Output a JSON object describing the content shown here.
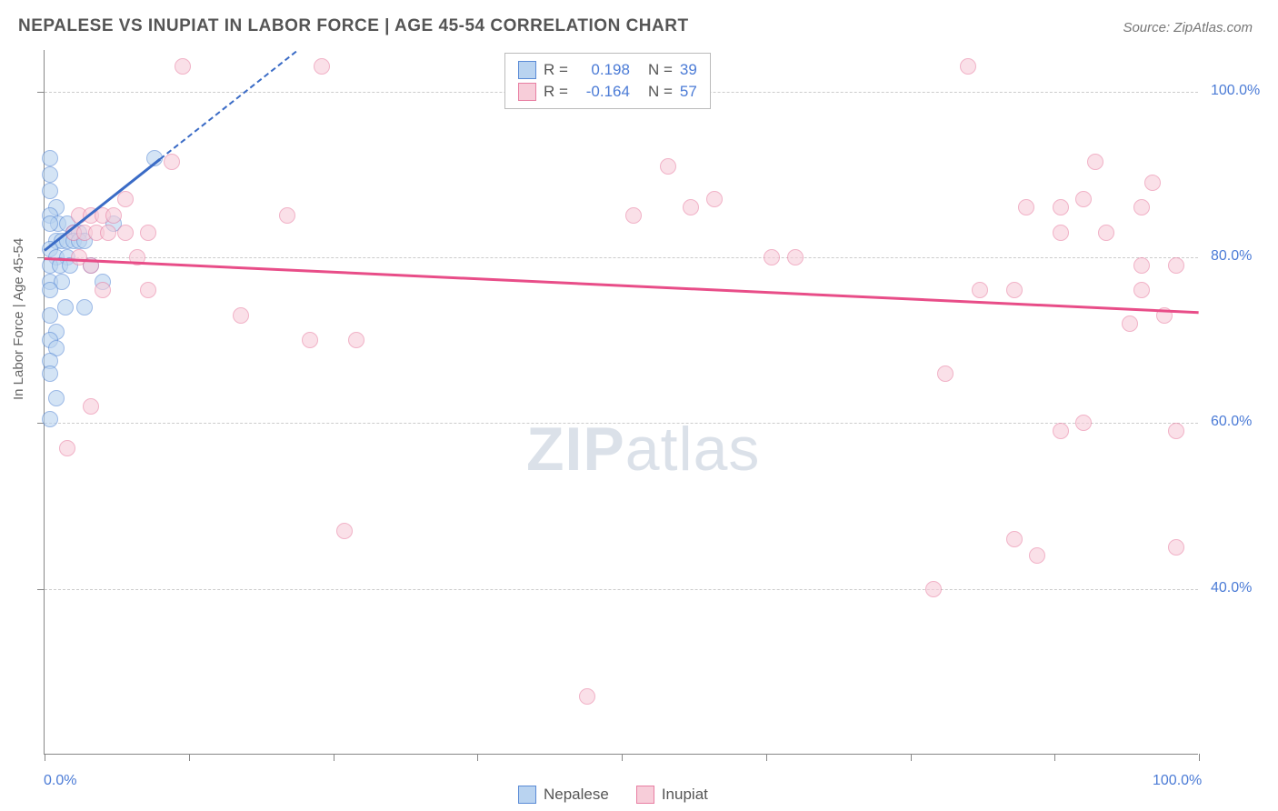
{
  "title": "NEPALESE VS INUPIAT IN LABOR FORCE | AGE 45-54 CORRELATION CHART",
  "source": "Source: ZipAtlas.com",
  "watermark_zip": "ZIP",
  "watermark_atlas": "atlas",
  "ylabel": "In Labor Force | Age 45-54",
  "chart": {
    "type": "scatter",
    "xlim": [
      0,
      100
    ],
    "ylim": [
      20,
      105
    ],
    "y_ticks": [
      40,
      60,
      80,
      100
    ],
    "y_tick_labels": [
      "40.0%",
      "60.0%",
      "80.0%",
      "100.0%"
    ],
    "x_tick_positions": [
      0,
      12.5,
      25,
      37.5,
      50,
      62.5,
      75,
      87.5,
      100
    ],
    "x_labels_shown": {
      "0": "0.0%",
      "100": "100.0%"
    },
    "grid_color": "#cccccc",
    "background_color": "#ffffff",
    "axis_color": "#888888",
    "tick_label_color": "#4b7bd6",
    "point_radius": 9,
    "series": [
      {
        "name": "Nepalese",
        "color_fill": "#b9d3f0",
        "color_stroke": "#5a8bd6",
        "opacity": 0.6,
        "R": "0.198",
        "N": "39",
        "trend": {
          "x1": 0,
          "y1": 81,
          "x2": 10,
          "y2": 92,
          "color": "#3a6bc6",
          "dash_extend_to_x": 30
        },
        "points": [
          [
            0.5,
            92
          ],
          [
            0.5,
            90
          ],
          [
            0.5,
            88
          ],
          [
            1,
            86
          ],
          [
            0.5,
            85
          ],
          [
            1.2,
            84
          ],
          [
            0.5,
            84
          ],
          [
            2,
            84
          ],
          [
            2.5,
            83
          ],
          [
            3,
            83
          ],
          [
            1,
            82
          ],
          [
            1.5,
            82
          ],
          [
            2,
            82
          ],
          [
            2.5,
            82
          ],
          [
            3,
            82
          ],
          [
            3.5,
            82
          ],
          [
            0.5,
            81
          ],
          [
            1,
            80
          ],
          [
            2,
            80
          ],
          [
            0.5,
            79
          ],
          [
            1.3,
            79
          ],
          [
            2.2,
            79
          ],
          [
            4,
            79
          ],
          [
            0.5,
            77
          ],
          [
            1.5,
            77
          ],
          [
            5,
            77
          ],
          [
            0.5,
            76
          ],
          [
            1.8,
            74
          ],
          [
            3.5,
            74
          ],
          [
            0.5,
            73
          ],
          [
            1,
            71
          ],
          [
            0.5,
            70
          ],
          [
            1,
            69
          ],
          [
            0.5,
            67.5
          ],
          [
            0.5,
            66
          ],
          [
            1,
            63
          ],
          [
            9.5,
            92
          ],
          [
            0.5,
            60.5
          ],
          [
            6,
            84
          ]
        ]
      },
      {
        "name": "Inupiat",
        "color_fill": "#f7cdd9",
        "color_stroke": "#e87fa3",
        "opacity": 0.6,
        "R": "-0.164",
        "N": "57",
        "trend": {
          "x1": 0,
          "y1": 80,
          "x2": 100,
          "y2": 73.5,
          "color": "#e84d88"
        },
        "points": [
          [
            12,
            103
          ],
          [
            24,
            103
          ],
          [
            80,
            103
          ],
          [
            11,
            91.5
          ],
          [
            54,
            91
          ],
          [
            58,
            87
          ],
          [
            56,
            86
          ],
          [
            90,
            87
          ],
          [
            91,
            91.5
          ],
          [
            96,
            89
          ],
          [
            85,
            86
          ],
          [
            88,
            86
          ],
          [
            95,
            86
          ],
          [
            7,
            87
          ],
          [
            21,
            85
          ],
          [
            88,
            83
          ],
          [
            92,
            83
          ],
          [
            3,
            85
          ],
          [
            4,
            85
          ],
          [
            5,
            85
          ],
          [
            6,
            85
          ],
          [
            2.5,
            83
          ],
          [
            3.5,
            83
          ],
          [
            4.5,
            83
          ],
          [
            5.5,
            83
          ],
          [
            7,
            83
          ],
          [
            9,
            83
          ],
          [
            51,
            85
          ],
          [
            63,
            80
          ],
          [
            65,
            80
          ],
          [
            95,
            79
          ],
          [
            98,
            79
          ],
          [
            81,
            76
          ],
          [
            84,
            76
          ],
          [
            95,
            76
          ],
          [
            97,
            73
          ],
          [
            94,
            72
          ],
          [
            5,
            76
          ],
          [
            9,
            76
          ],
          [
            17,
            73
          ],
          [
            23,
            70
          ],
          [
            27,
            70
          ],
          [
            78,
            66
          ],
          [
            90,
            60
          ],
          [
            88,
            59
          ],
          [
            98,
            59
          ],
          [
            4,
            62
          ],
          [
            2,
            57
          ],
          [
            84,
            46
          ],
          [
            86,
            44
          ],
          [
            98,
            45
          ],
          [
            26,
            47
          ],
          [
            77,
            40
          ],
          [
            47,
            27
          ],
          [
            3,
            80
          ],
          [
            8,
            80
          ],
          [
            4,
            79
          ]
        ]
      }
    ]
  },
  "legend_top": {
    "r_label": "R =",
    "n_label": "N =",
    "value_color": "#4b7bd6",
    "label_color": "#555555"
  },
  "legend_bottom": [
    {
      "label": "Nepalese",
      "fill": "#b9d3f0",
      "stroke": "#5a8bd6"
    },
    {
      "label": "Inupiat",
      "fill": "#f7cdd9",
      "stroke": "#e87fa3"
    }
  ]
}
